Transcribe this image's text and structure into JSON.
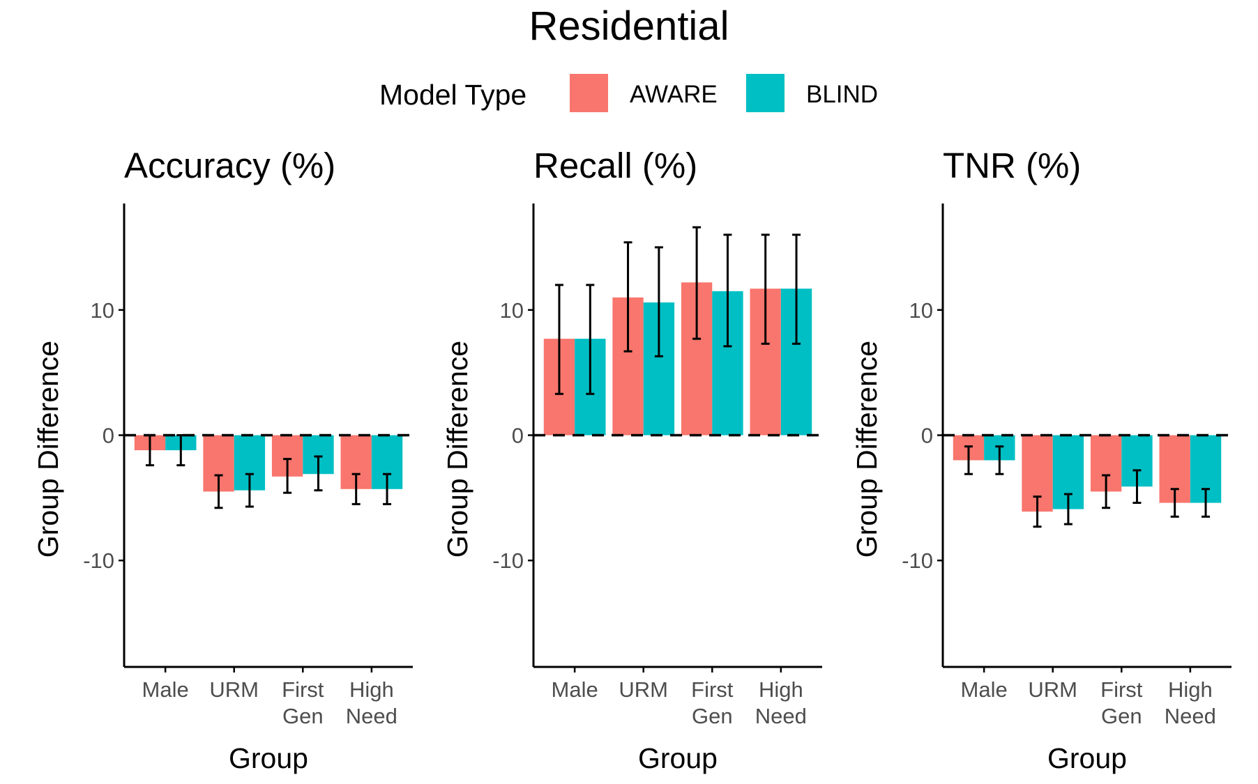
{
  "title": "Residential",
  "legend": {
    "title": "Model Type",
    "items": [
      {
        "label": "AWARE",
        "color": "#F8766D"
      },
      {
        "label": "BLIND",
        "color": "#00BFC4"
      }
    ]
  },
  "colors": {
    "aware": "#F8766D",
    "blind": "#00BFC4"
  },
  "chart_data": [
    {
      "type": "bar",
      "title": "Accuracy (%)",
      "xlabel": "Group",
      "ylabel": "Group Difference",
      "ylim": [
        -18.5,
        18.5
      ],
      "yticks": [
        -10,
        0,
        10
      ],
      "ytick_labels": [
        "-10",
        "0",
        "10"
      ],
      "categories": [
        "Male",
        "URM",
        "First Gen",
        "High Need"
      ],
      "category_lines": [
        [
          "Male"
        ],
        [
          "URM"
        ],
        [
          "First",
          "Gen"
        ],
        [
          "High",
          "Need"
        ]
      ],
      "series": [
        {
          "name": "AWARE",
          "values": [
            -1.2,
            -4.5,
            -3.3,
            -4.3
          ],
          "err_low": [
            -2.4,
            -5.8,
            -4.6,
            -5.5
          ],
          "err_high": [
            0.0,
            -3.2,
            -1.9,
            -3.1
          ]
        },
        {
          "name": "BLIND",
          "values": [
            -1.2,
            -4.4,
            -3.1,
            -4.3
          ],
          "err_low": [
            -2.4,
            -5.7,
            -4.4,
            -5.5
          ],
          "err_high": [
            0.0,
            -3.1,
            -1.7,
            -3.1
          ]
        }
      ]
    },
    {
      "type": "bar",
      "title": "Recall (%)",
      "xlabel": "Group",
      "ylabel": "Group Difference",
      "ylim": [
        -18.5,
        18.5
      ],
      "yticks": [
        -10,
        0,
        10
      ],
      "ytick_labels": [
        "-10",
        "0",
        "10"
      ],
      "categories": [
        "Male",
        "URM",
        "First Gen",
        "High Need"
      ],
      "category_lines": [
        [
          "Male"
        ],
        [
          "URM"
        ],
        [
          "First",
          "Gen"
        ],
        [
          "High",
          "Need"
        ]
      ],
      "series": [
        {
          "name": "AWARE",
          "values": [
            7.7,
            11.0,
            12.2,
            11.7
          ],
          "err_low": [
            3.3,
            6.7,
            7.7,
            7.3
          ],
          "err_high": [
            12.0,
            15.4,
            16.6,
            16.0
          ]
        },
        {
          "name": "BLIND",
          "values": [
            7.7,
            10.6,
            11.5,
            11.7
          ],
          "err_low": [
            3.3,
            6.3,
            7.1,
            7.3
          ],
          "err_high": [
            12.0,
            15.0,
            16.0,
            16.0
          ]
        }
      ]
    },
    {
      "type": "bar",
      "title": "TNR (%)",
      "xlabel": "Group",
      "ylabel": "Group Difference",
      "ylim": [
        -18.5,
        18.5
      ],
      "yticks": [
        -10,
        0,
        10
      ],
      "ytick_labels": [
        "-10",
        "0",
        "10"
      ],
      "categories": [
        "Male",
        "URM",
        "First Gen",
        "High Need"
      ],
      "category_lines": [
        [
          "Male"
        ],
        [
          "URM"
        ],
        [
          "First",
          "Gen"
        ],
        [
          "High",
          "Need"
        ]
      ],
      "series": [
        {
          "name": "AWARE",
          "values": [
            -2.0,
            -6.1,
            -4.5,
            -5.4
          ],
          "err_low": [
            -3.1,
            -7.3,
            -5.8,
            -6.5
          ],
          "err_high": [
            -0.9,
            -4.9,
            -3.2,
            -4.3
          ]
        },
        {
          "name": "BLIND",
          "values": [
            -2.0,
            -5.9,
            -4.1,
            -5.4
          ],
          "err_low": [
            -3.1,
            -7.1,
            -5.4,
            -6.5
          ],
          "err_high": [
            -0.9,
            -4.7,
            -2.8,
            -4.3
          ]
        }
      ]
    }
  ]
}
